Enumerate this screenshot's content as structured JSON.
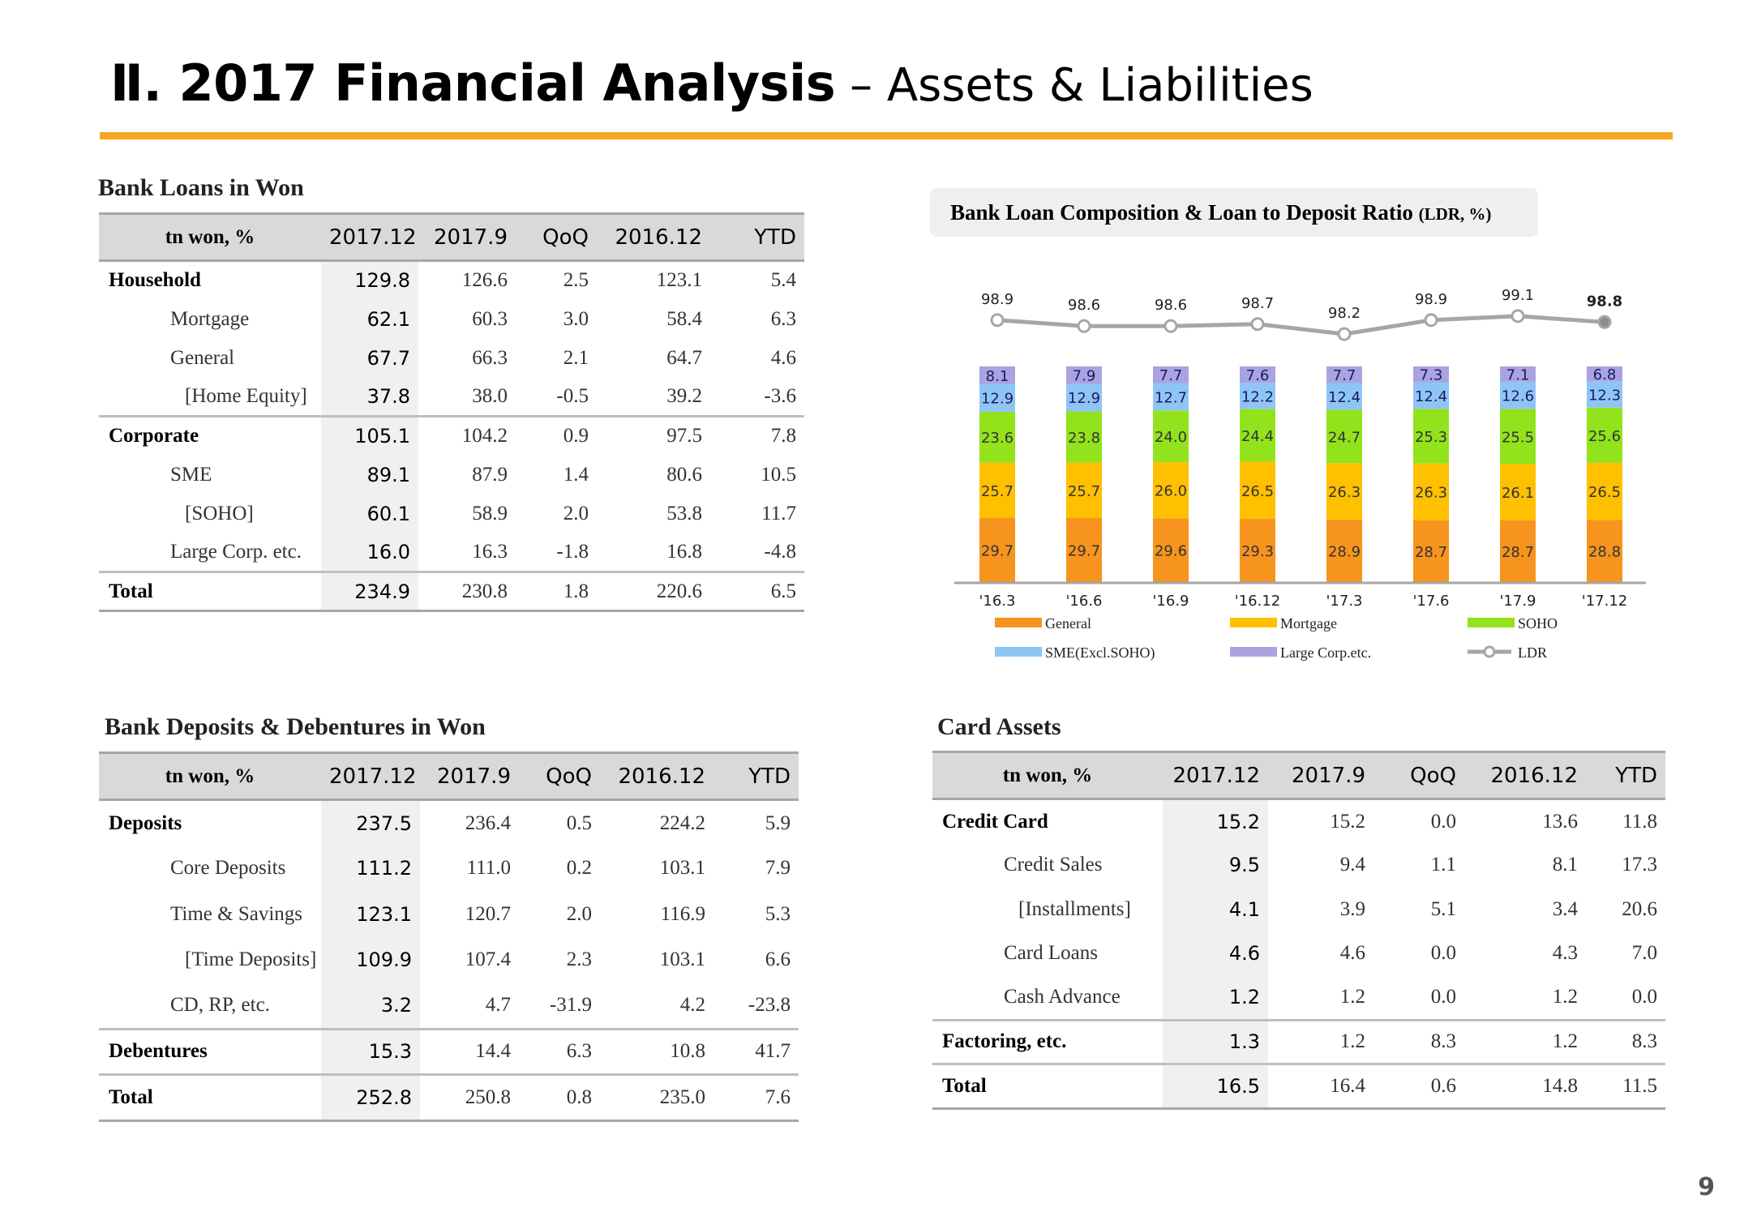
{
  "header": {
    "title_bold": "Ⅱ. 2017 Financial Analysis",
    "title_light": " – Assets & Liabilities"
  },
  "loans": {
    "title": "Bank Loans in Won",
    "columns": [
      "tn won, %",
      "2017.12",
      "2017.9",
      "QoQ",
      "2016.12",
      "YTD"
    ],
    "rows": [
      {
        "label": "Household",
        "level": 0,
        "values": [
          "129.8",
          "126.6",
          "2.5",
          "123.1",
          "5.4"
        ]
      },
      {
        "label": "Mortgage",
        "level": 1,
        "values": [
          "62.1",
          "60.3",
          "3.0",
          "58.4",
          "6.3"
        ]
      },
      {
        "label": "General",
        "level": 1,
        "values": [
          "67.7",
          "66.3",
          "2.1",
          "64.7",
          "4.6"
        ]
      },
      {
        "label": "[Home Equity]",
        "level": 2,
        "values": [
          "37.8",
          "38.0",
          "-0.5",
          "39.2",
          "-3.6"
        ]
      },
      {
        "label": "Corporate",
        "level": 0,
        "values": [
          "105.1",
          "104.2",
          "0.9",
          "97.5",
          "7.8"
        ]
      },
      {
        "label": "SME",
        "level": 1,
        "values": [
          "89.1",
          "87.9",
          "1.4",
          "80.6",
          "10.5"
        ]
      },
      {
        "label": "[SOHO]",
        "level": 2,
        "values": [
          "60.1",
          "58.9",
          "2.0",
          "53.8",
          "11.7"
        ]
      },
      {
        "label": "Large Corp. etc.",
        "level": 1,
        "values": [
          "16.0",
          "16.3",
          "-1.8",
          "16.8",
          "-4.8"
        ]
      },
      {
        "label": "Total",
        "level": 0,
        "values": [
          "234.9",
          "230.8",
          "1.8",
          "220.6",
          "6.5"
        ]
      }
    ]
  },
  "deposits": {
    "title": "Bank Deposits & Debentures in Won",
    "columns": [
      "tn won, %",
      "2017.12",
      "2017.9",
      "QoQ",
      "2016.12",
      "YTD"
    ],
    "rows": [
      {
        "label": "Deposits",
        "level": 0,
        "values": [
          "237.5",
          "236.4",
          "0.5",
          "224.2",
          "5.9"
        ]
      },
      {
        "label": "Core Deposits",
        "level": 1,
        "values": [
          "111.2",
          "111.0",
          "0.2",
          "103.1",
          "7.9"
        ]
      },
      {
        "label": "Time & Savings",
        "level": 1,
        "values": [
          "123.1",
          "120.7",
          "2.0",
          "116.9",
          "5.3"
        ]
      },
      {
        "label": "[Time Deposits]",
        "level": 2,
        "values": [
          "109.9",
          "107.4",
          "2.3",
          "103.1",
          "6.6"
        ]
      },
      {
        "label": "CD, RP, etc.",
        "level": 1,
        "values": [
          "3.2",
          "4.7",
          "-31.9",
          "4.2",
          "-23.8"
        ]
      },
      {
        "label": "Debentures",
        "level": 0,
        "values": [
          "15.3",
          "14.4",
          "6.3",
          "10.8",
          "41.7"
        ]
      },
      {
        "label": "Total",
        "level": 0,
        "values": [
          "252.8",
          "250.8",
          "0.8",
          "235.0",
          "7.6"
        ]
      }
    ]
  },
  "card": {
    "title": "Card Assets",
    "columns": [
      "tn won, %",
      "2017.12",
      "2017.9",
      "QoQ",
      "2016.12",
      "YTD"
    ],
    "rows": [
      {
        "label": "Credit Card",
        "level": 0,
        "values": [
          "15.2",
          "15.2",
          "0.0",
          "13.6",
          "11.8"
        ]
      },
      {
        "label": "Credit Sales",
        "level": 1,
        "values": [
          "9.5",
          "9.4",
          "1.1",
          "8.1",
          "17.3"
        ]
      },
      {
        "label": "[Installments]",
        "level": 2,
        "values": [
          "4.1",
          "3.9",
          "5.1",
          "3.4",
          "20.6"
        ]
      },
      {
        "label": "Card Loans",
        "level": 1,
        "values": [
          "4.6",
          "4.6",
          "0.0",
          "4.3",
          "7.0"
        ]
      },
      {
        "label": "Cash Advance",
        "level": 1,
        "values": [
          "1.2",
          "1.2",
          "0.0",
          "1.2",
          "0.0"
        ]
      },
      {
        "label": "Factoring, etc.",
        "level": 0,
        "values": [
          "1.3",
          "1.2",
          "8.3",
          "1.2",
          "8.3"
        ]
      },
      {
        "label": "Total",
        "level": 0,
        "values": [
          "16.5",
          "16.4",
          "0.6",
          "14.8",
          "11.5"
        ]
      }
    ]
  },
  "chart_data": {
    "type": "bar",
    "stacked": true,
    "title": "Bank Loan Composition & Loan to Deposit Ratio",
    "title_unit": "(LDR, %)",
    "categories": [
      "'16.3",
      "'16.6",
      "'16.9",
      "'16.12",
      "'17.3",
      "'17.6",
      "'17.9",
      "'17.12"
    ],
    "series": [
      {
        "name": "General",
        "color": "#f7941d",
        "values": [
          29.7,
          29.7,
          29.6,
          29.3,
          28.9,
          28.7,
          28.7,
          28.8
        ]
      },
      {
        "name": "Mortgage",
        "color": "#ffc000",
        "values": [
          25.7,
          25.7,
          26.0,
          26.5,
          26.3,
          26.3,
          26.1,
          26.5
        ]
      },
      {
        "name": "SOHO",
        "color": "#92e21c",
        "values": [
          23.6,
          23.8,
          24.0,
          24.4,
          24.7,
          25.3,
          25.5,
          25.6
        ]
      },
      {
        "name": "SME(Excl.SOHO)",
        "color": "#8ec5f5",
        "values": [
          12.9,
          12.9,
          12.7,
          12.2,
          12.4,
          12.4,
          12.6,
          12.3
        ]
      },
      {
        "name": "Large Corp.etc.",
        "color": "#a9a3e0",
        "values": [
          8.1,
          7.9,
          7.7,
          7.6,
          7.7,
          7.3,
          7.1,
          6.8
        ]
      }
    ],
    "line": {
      "name": "LDR",
      "color": "#a6a6a6",
      "values": [
        98.9,
        98.6,
        98.6,
        98.7,
        98.2,
        98.9,
        99.1,
        98.8
      ]
    },
    "legend_position": "bottom",
    "grid": false
  },
  "page_number": "9"
}
